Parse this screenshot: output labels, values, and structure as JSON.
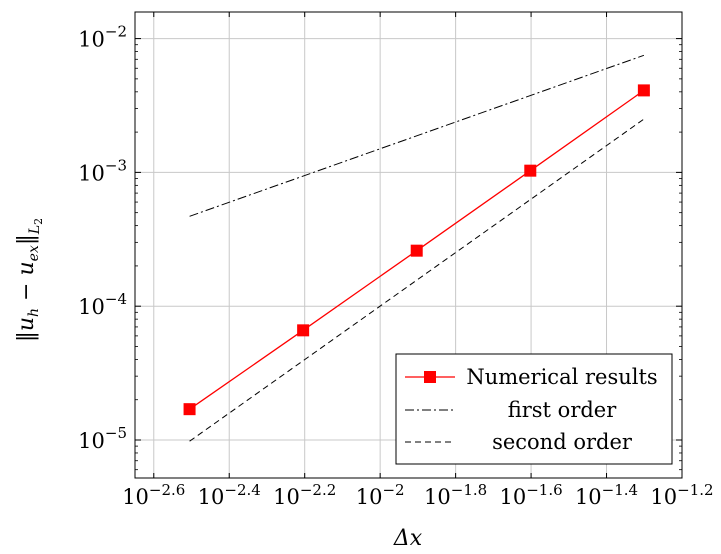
{
  "chart_data": {
    "type": "line",
    "xlabel": "Δx",
    "ylabel": "‖u_h − u_ex‖_L2",
    "x_scale": "log",
    "y_scale": "log",
    "xlim": [
      0.00224,
      0.0631
    ],
    "ylim": [
      5.2e-06,
      0.0158
    ],
    "grid": true,
    "legend_position": "bottom-right",
    "x_ticks": [
      {
        "value": 0.002512,
        "base": "10",
        "exp": "−2.6"
      },
      {
        "value": 0.003981,
        "base": "10",
        "exp": "−2.4"
      },
      {
        "value": 0.00631,
        "base": "10",
        "exp": "−2.2"
      },
      {
        "value": 0.01,
        "base": "10",
        "exp": "−2"
      },
      {
        "value": 0.01585,
        "base": "10",
        "exp": "−1.8"
      },
      {
        "value": 0.02512,
        "base": "10",
        "exp": "−1.6"
      },
      {
        "value": 0.03981,
        "base": "10",
        "exp": "−1.4"
      },
      {
        "value": 0.0631,
        "base": "10",
        "exp": "−1.2"
      }
    ],
    "y_ticks": [
      {
        "value": 1e-05,
        "base": "10",
        "exp": "−5"
      },
      {
        "value": 0.0001,
        "base": "10",
        "exp": "−4"
      },
      {
        "value": 0.001,
        "base": "10",
        "exp": "−3"
      },
      {
        "value": 0.01,
        "base": "10",
        "exp": "−2"
      }
    ],
    "series": [
      {
        "name": "Numerical results",
        "style": "solid-marker",
        "color": "#ff0000",
        "x": [
          0.003125,
          0.00625,
          0.0125,
          0.025,
          0.05
        ],
        "y": [
          1.7e-05,
          6.6e-05,
          0.00026,
          0.00103,
          0.0041
        ]
      },
      {
        "name": "first order",
        "style": "dashdot",
        "color": "#000000",
        "x": [
          0.003125,
          0.05
        ],
        "y": [
          0.00047,
          0.0075
        ]
      },
      {
        "name": "second order",
        "style": "dashed",
        "color": "#000000",
        "x": [
          0.003125,
          0.05
        ],
        "y": [
          9.8e-06,
          0.0025
        ]
      }
    ]
  }
}
